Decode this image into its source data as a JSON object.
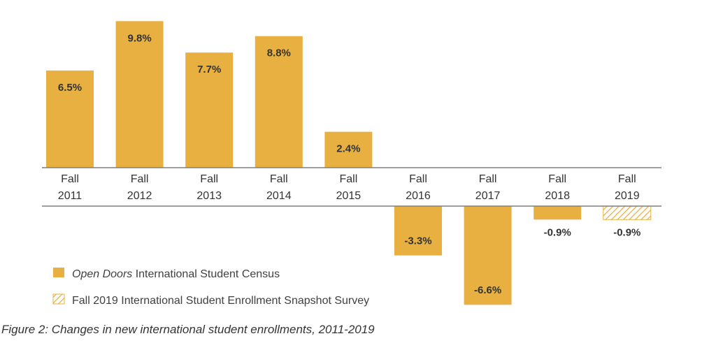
{
  "chart_data": {
    "type": "bar",
    "categories": [
      [
        "Fall",
        "2011"
      ],
      [
        "Fall",
        "2012"
      ],
      [
        "Fall",
        "2013"
      ],
      [
        "Fall",
        "2014"
      ],
      [
        "Fall",
        "2015"
      ],
      [
        "Fall",
        "2016"
      ],
      [
        "Fall",
        "2017"
      ],
      [
        "Fall",
        "2018"
      ],
      [
        "Fall",
        "2019"
      ]
    ],
    "values": [
      6.5,
      9.8,
      7.7,
      8.8,
      2.4,
      -3.3,
      -6.6,
      -0.9,
      -0.9
    ],
    "value_labels": [
      "6.5%",
      "9.8%",
      "7.7%",
      "8.8%",
      "2.4%",
      "-3.3%",
      "-6.6%",
      "-0.9%",
      "-0.9%"
    ],
    "series_index": [
      0,
      0,
      0,
      0,
      0,
      0,
      0,
      0,
      1
    ],
    "series": [
      {
        "name_italic": "Open Doors",
        "name_rest": " International Student Census",
        "fill": "solid",
        "color": "#E8B040"
      },
      {
        "name_italic": "",
        "name_rest": "Fall 2019 International Student Enrollment Snapshot Survey",
        "fill": "hatched",
        "color": "#E8B040"
      }
    ],
    "legend_position": "bottom-left",
    "grid": false
  },
  "caption": "Figure 2: Changes in new international student enrollments, 2011-2019"
}
